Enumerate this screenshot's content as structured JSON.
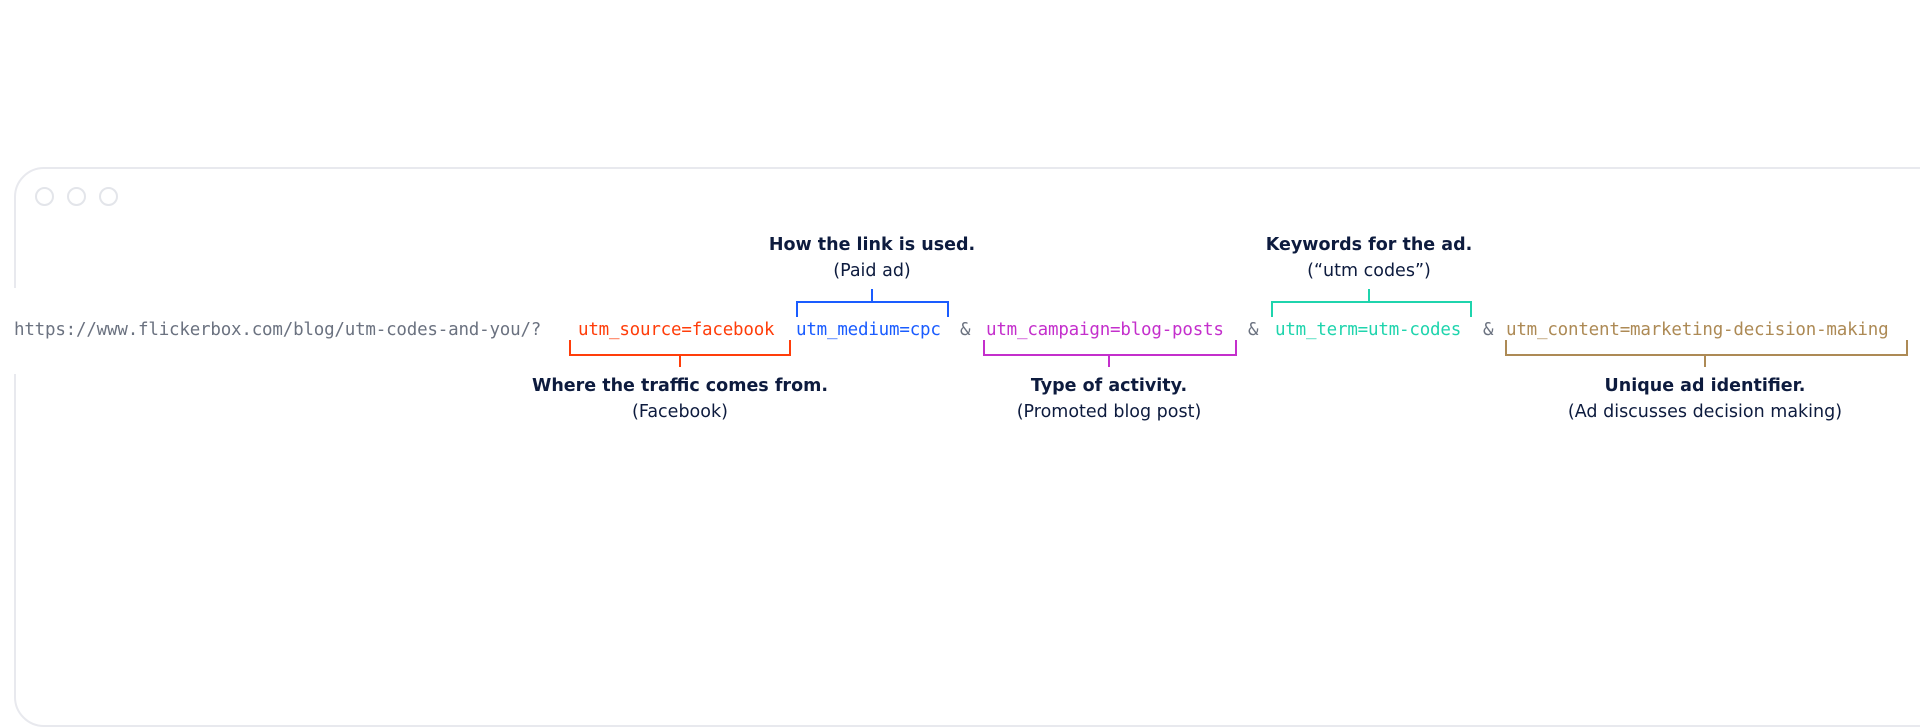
{
  "window": {
    "controls": [
      "close",
      "minimize",
      "maximize"
    ]
  },
  "url": {
    "base": "https://www.flickerbox.com/blog/utm-codes-and-you/?",
    "separator": "&",
    "params": [
      {
        "text": "utm_source=facebook",
        "color": "#ff3d0a",
        "label": "Where the traffic comes from.",
        "sublabel": "(Facebook)",
        "position": "below"
      },
      {
        "text": "utm_medium=cpc",
        "color": "#1a5cff",
        "label": "How the link is used.",
        "sublabel": "(Paid ad)",
        "position": "above"
      },
      {
        "text": "utm_campaign=blog-posts",
        "color": "#c42fcc",
        "label": "Type of activity.",
        "sublabel": "(Promoted blog post)",
        "position": "below"
      },
      {
        "text": "utm_term=utm-codes",
        "color": "#1fd4ad",
        "label": "Keywords for the ad.",
        "sublabel": "(“utm codes”)",
        "position": "above"
      },
      {
        "text": "utm_content=marketing-decision-making",
        "color": "#ad8a55",
        "label": "Unique ad identifier.",
        "sublabel": "(Ad discusses decision making)",
        "position": "below"
      }
    ]
  },
  "colors": {
    "base_text": "#6b7280",
    "label_text": "#0d1b3e",
    "window_border": "#e8e9ee"
  }
}
